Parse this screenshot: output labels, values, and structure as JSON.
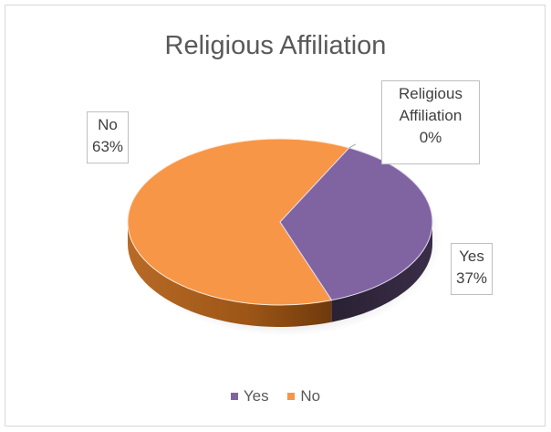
{
  "chart_data": {
    "type": "pie",
    "title": "Religious Affiliation",
    "categories": [
      "Religious Affiliation",
      "Yes",
      "No"
    ],
    "values": [
      0,
      37,
      63
    ],
    "percent_labels": [
      "0%",
      "37%",
      "63%"
    ],
    "colors": {
      "Yes": "#8064a2",
      "No": "#f79646"
    },
    "legend": {
      "position": "bottom",
      "items": [
        {
          "label": "Yes",
          "color": "#8064a2"
        },
        {
          "label": "No",
          "color": "#f79646"
        }
      ]
    },
    "style": "3d"
  },
  "labels": {
    "no": {
      "name": "No",
      "pct": "63%"
    },
    "yes": {
      "name": "Yes",
      "pct": "37%"
    },
    "religious": {
      "line1": "Religious",
      "line2": "Affiliation",
      "pct": "0%"
    }
  }
}
